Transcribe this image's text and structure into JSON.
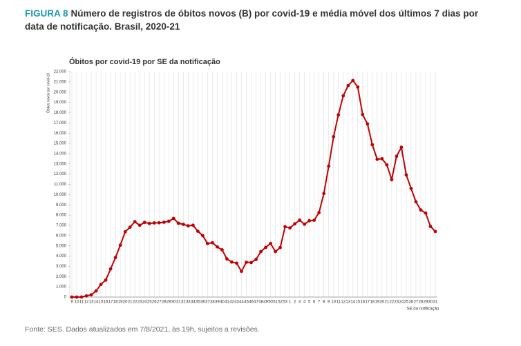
{
  "figure_label": "FIGURA 8",
  "figure_title": "Número de registros de óbitos novos (B) por covid-19 e média móvel dos últimos 7 dias por data de notificação. Brasil, 2020-21",
  "source": "Fonte: SES. Dados atualizados em 7/8/2021, às 19h, sujeitos a revisões.",
  "chart_data": {
    "type": "line",
    "title": "Óbitos por covid-19 por SE da notificação",
    "y_label": "Óbitos novos por covid-19",
    "x_label": "SE da notificação",
    "categories": [
      "9",
      "10",
      "11",
      "12",
      "13",
      "14",
      "15",
      "16",
      "17",
      "18",
      "19",
      "20",
      "21",
      "22",
      "23",
      "24",
      "25",
      "26",
      "27",
      "28",
      "29",
      "30",
      "31",
      "32",
      "33",
      "34",
      "35",
      "36",
      "37",
      "38",
      "39",
      "40",
      "41",
      "42",
      "43",
      "44",
      "45",
      "46",
      "47",
      "48",
      "49",
      "50",
      "51",
      "52",
      "53",
      "1",
      "2",
      "3",
      "4",
      "5",
      "6",
      "7",
      "8",
      "9",
      "10",
      "11",
      "12",
      "13",
      "14",
      "15",
      "16",
      "17",
      "18",
      "19",
      "20",
      "21",
      "22",
      "23",
      "24",
      "25",
      "26",
      "27",
      "28",
      "29",
      "30",
      "31"
    ],
    "series": [
      {
        "name": "Óbitos novos",
        "color": "#c00000",
        "values": [
          0,
          0,
          9,
          113,
          219,
          600,
          1233,
          1665,
          2749,
          3862,
          5066,
          6366,
          6821,
          7356,
          7006,
          7288,
          7180,
          7237,
          7250,
          7303,
          7400,
          7677,
          7200,
          7100,
          6950,
          7016,
          6424,
          6000,
          5222,
          5303,
          4900,
          4613,
          3720,
          3418,
          3307,
          2511,
          3398,
          3371,
          3670,
          4441,
          4850,
          5232,
          4443,
          4835,
          6866,
          6750,
          7146,
          7505,
          7109,
          7449,
          7500,
          8244,
          10109,
          12777,
          15655,
          17790,
          19643,
          20639,
          21141,
          20500,
          17815,
          16900,
          14871,
          13452,
          13500,
          12900,
          11471,
          13741,
          14620,
          11932,
          10600,
          9300,
          8500,
          8200,
          6900,
          6400
        ]
      }
    ],
    "ylim": [
      0,
      22000
    ],
    "yticks": [
      0,
      {
        "value": 1000,
        "label": "1.000"
      },
      {
        "value": 2000,
        "label": "2.000"
      },
      {
        "value": 3000,
        "label": "3.000"
      },
      {
        "value": 4000,
        "label": "4.000"
      },
      {
        "value": 5000,
        "label": "5.000"
      },
      {
        "value": 6000,
        "label": "6.000"
      },
      {
        "value": 7000,
        "label": "7.000"
      },
      {
        "value": 8000,
        "label": "8.000"
      },
      {
        "value": 9000,
        "label": "9.000"
      },
      {
        "value": 10000,
        "label": "10.000"
      },
      {
        "value": 11000,
        "label": "11.000"
      },
      {
        "value": 12000,
        "label": "12.000"
      },
      {
        "value": 13000,
        "label": "13.000"
      },
      {
        "value": 14000,
        "label": "14.000"
      },
      {
        "value": 15000,
        "label": "15.000"
      },
      {
        "value": 16000,
        "label": "16.000"
      },
      {
        "value": 17000,
        "label": "17.000"
      },
      {
        "value": 18000,
        "label": "18.000"
      },
      {
        "value": 19000,
        "label": "19.000"
      },
      {
        "value": 20000,
        "label": "20.000"
      },
      {
        "value": 21000,
        "label": "21.000"
      },
      {
        "value": 22000,
        "label": "22.000"
      }
    ],
    "grid": true
  }
}
